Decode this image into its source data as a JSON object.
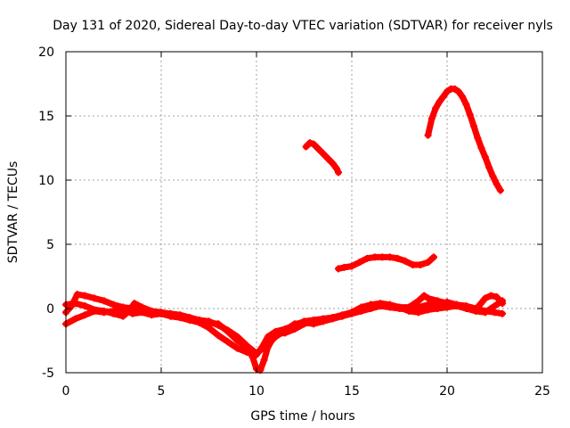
{
  "chart_data": {
    "type": "scatter",
    "title": "Day 131 of 2020, Sidereal Day-to-day VTEC variation (SDTVAR) for receiver nyls",
    "xlabel": "GPS time / hours",
    "ylabel": "SDTVAR / TECUs",
    "xlim": [
      0,
      25
    ],
    "ylim": [
      -5,
      20
    ],
    "xticks": [
      0,
      5,
      10,
      15,
      20,
      25
    ],
    "yticks": [
      -5,
      0,
      5,
      10,
      15,
      20
    ],
    "grid": true,
    "marker": "+",
    "color": "#ff0000",
    "series": [
      {
        "name": "trace-1",
        "x": [
          0.0,
          0.5,
          1.0,
          1.5,
          2.0,
          2.5,
          3.0,
          3.5,
          4.0,
          4.5,
          5.0,
          5.5,
          6.0,
          6.5,
          7.0,
          7.5,
          8.0,
          8.5,
          9.0,
          9.5,
          9.8,
          10.0,
          10.2,
          10.4,
          10.6,
          11.0,
          11.5,
          12.0,
          12.5,
          13.0,
          13.5,
          14.0,
          14.5,
          15.0,
          15.5,
          16.0,
          16.5,
          17.0,
          17.5,
          18.0,
          18.5,
          19.0,
          19.5,
          20.0,
          20.5,
          21.0,
          21.5,
          22.0,
          22.5,
          22.9
        ],
        "y": [
          -1.2,
          -0.8,
          -0.5,
          -0.2,
          -0.3,
          -0.2,
          -0.1,
          -0.4,
          -0.3,
          -0.5,
          -0.4,
          -0.6,
          -0.7,
          -0.9,
          -1.0,
          -1.1,
          -1.2,
          -1.8,
          -2.5,
          -3.0,
          -3.8,
          -4.7,
          -4.8,
          -4.0,
          -3.0,
          -2.0,
          -1.9,
          -1.6,
          -1.2,
          -1.0,
          -0.9,
          -0.7,
          -0.6,
          -0.4,
          -0.2,
          0.0,
          0.2,
          0.1,
          0.0,
          -0.1,
          0.1,
          0.3,
          0.4,
          0.5,
          0.3,
          0.2,
          0.0,
          -0.2,
          -0.3,
          -0.4
        ]
      },
      {
        "name": "trace-2",
        "x": [
          0.0,
          0.3,
          0.6,
          1.0,
          1.5,
          2.0,
          2.5,
          3.0,
          3.5,
          4.0,
          4.5,
          5.0,
          5.5,
          6.0,
          6.5,
          7.0,
          7.5,
          8.0,
          8.5,
          9.0,
          9.5,
          10.0,
          10.3,
          10.6,
          11.0,
          11.5,
          12.0,
          12.5,
          13.0,
          13.5,
          14.0,
          14.5,
          15.0,
          15.5,
          16.0,
          16.5,
          17.0,
          17.5,
          18.0,
          18.5,
          19.0,
          19.5,
          20.0,
          20.5,
          21.0,
          21.5,
          22.0,
          22.5,
          22.9
        ],
        "y": [
          -0.3,
          0.2,
          1.1,
          1.0,
          0.8,
          0.6,
          0.3,
          0.1,
          0.0,
          -0.2,
          -0.3,
          -0.4,
          -0.6,
          -0.7,
          -0.9,
          -1.1,
          -1.5,
          -2.1,
          -2.6,
          -3.1,
          -3.4,
          -3.6,
          -3.0,
          -2.2,
          -1.8,
          -1.6,
          -1.3,
          -1.0,
          -0.9,
          -0.8,
          -0.7,
          -0.5,
          -0.3,
          0.0,
          0.3,
          0.4,
          0.3,
          0.1,
          -0.2,
          -0.3,
          -0.1,
          0.0,
          0.1,
          0.2,
          0.0,
          -0.2,
          -0.3,
          0.2,
          0.6
        ]
      },
      {
        "name": "trace-3",
        "x": [
          0.0,
          0.5,
          1.0,
          1.5,
          2.0,
          2.5,
          3.0,
          3.3,
          3.6,
          4.0,
          4.5,
          5.0,
          5.5,
          6.0,
          6.5,
          7.0,
          7.5,
          8.0,
          8.5,
          9.0,
          9.5,
          10.0,
          10.5,
          11.0,
          11.5,
          12.0,
          12.5,
          13.0,
          13.5,
          14.0,
          14.5,
          15.0,
          15.5,
          16.0,
          16.5,
          17.0,
          17.5,
          18.0,
          18.5,
          18.8,
          19.0,
          19.5,
          20.0,
          20.5,
          21.0,
          21.5,
          22.0,
          22.3,
          22.6,
          22.9
        ],
        "y": [
          0.3,
          0.4,
          0.2,
          -0.1,
          -0.2,
          -0.4,
          -0.6,
          -0.2,
          0.4,
          0.1,
          -0.2,
          -0.3,
          -0.4,
          -0.5,
          -0.7,
          -0.9,
          -1.0,
          -1.3,
          -1.7,
          -2.2,
          -2.9,
          -3.5,
          -2.9,
          -2.2,
          -1.7,
          -1.2,
          -1.1,
          -1.2,
          -1.0,
          -0.8,
          -0.6,
          -0.3,
          0.1,
          0.3,
          0.2,
          0.2,
          0.1,
          0.1,
          0.6,
          1.0,
          0.8,
          0.6,
          0.4,
          0.3,
          0.1,
          -0.1,
          0.8,
          1.0,
          0.9,
          0.4
        ]
      },
      {
        "name": "trace-4",
        "x": [
          12.6,
          12.8,
          13.0,
          13.2,
          13.4,
          13.6,
          13.8,
          14.0,
          14.2,
          14.3
        ],
        "y": [
          12.6,
          12.9,
          12.8,
          12.5,
          12.2,
          11.9,
          11.6,
          11.3,
          10.9,
          10.6
        ]
      },
      {
        "name": "trace-5",
        "x": [
          14.3,
          14.6,
          15.0,
          15.4,
          15.8,
          16.2,
          16.6,
          17.0,
          17.4,
          17.8,
          18.2,
          18.6,
          19.0,
          19.3
        ],
        "y": [
          3.1,
          3.2,
          3.3,
          3.6,
          3.9,
          4.0,
          4.0,
          4.0,
          3.9,
          3.7,
          3.4,
          3.4,
          3.6,
          4.0
        ]
      },
      {
        "name": "trace-6",
        "x": [
          19.0,
          19.2,
          19.4,
          19.6,
          19.8,
          20.0,
          20.2,
          20.4,
          20.6,
          20.8,
          21.0,
          21.2,
          21.4,
          21.6,
          21.8,
          22.0,
          22.2,
          22.4,
          22.6,
          22.8
        ],
        "y": [
          13.5,
          14.8,
          15.6,
          16.1,
          16.5,
          16.9,
          17.1,
          17.1,
          16.9,
          16.5,
          15.9,
          15.1,
          14.2,
          13.3,
          12.5,
          11.8,
          11.0,
          10.3,
          9.7,
          9.2
        ]
      }
    ]
  }
}
